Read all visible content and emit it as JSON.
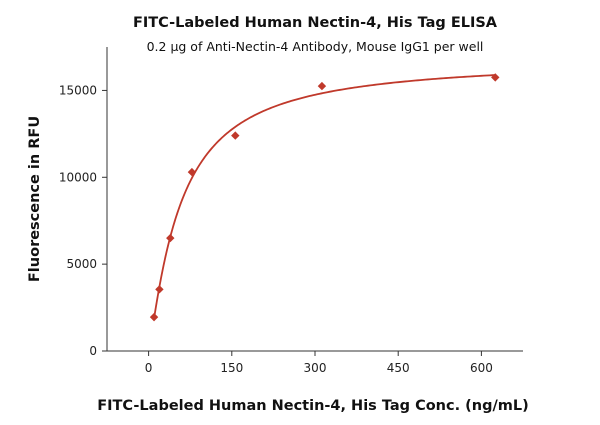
{
  "chart_data": {
    "type": "scatter",
    "title": "FITC-Labeled Human Nectin-4, His Tag ELISA",
    "subtitle": "0.2 μg of Anti-Nectin-4 Antibody, Mouse IgG1 per well",
    "xlabel": "FITC-Labeled Human Nectin-4, His Tag Conc. (ng/mL)",
    "ylabel": "Fluorescence in RFU",
    "xlim": [
      -75,
      675
    ],
    "ylim": [
      0,
      17500
    ],
    "x_ticks": [
      0,
      150,
      300,
      450,
      600
    ],
    "y_ticks": [
      0,
      5000,
      10000,
      15000
    ],
    "grid": false,
    "series": [
      {
        "points": [
          {
            "x": 9.8,
            "y": 1950
          },
          {
            "x": 19.5,
            "y": 3550
          },
          {
            "x": 39.1,
            "y": 6500
          },
          {
            "x": 78.1,
            "y": 10300
          },
          {
            "x": 156.3,
            "y": 12400
          },
          {
            "x": 312.5,
            "y": 15250
          },
          {
            "x": 625,
            "y": 15750
          }
        ],
        "color": "#c0392b",
        "marker": "diamond",
        "fit": "saturation-curve"
      }
    ]
  }
}
